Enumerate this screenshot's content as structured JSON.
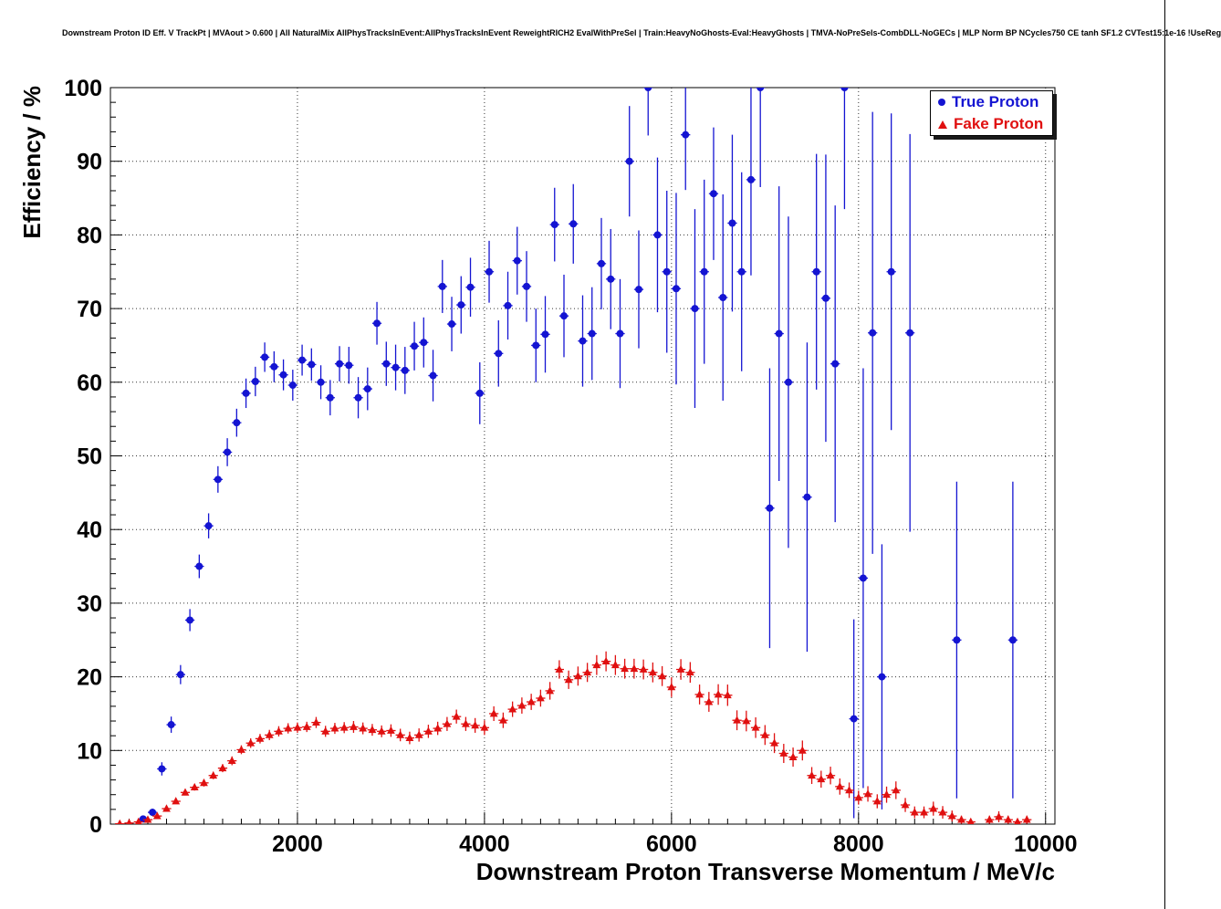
{
  "chart_data": {
    "type": "scatter",
    "title": "Downstream Proton ID Eff. V TrackPt | MVAout > 0.600 | All NaturalMix AllPhysTracksInEvent:AllPhysTracksInEvent ReweightRICH2 EvalWithPreSel | Train:HeavyNoGhosts-Eval:HeavyGhosts | TMVA-NoPreSels-CombDLL-NoGECs | MLP Norm BP NCycles750 CE tanh SF1.2 CVTest15:1e-16 !UseReg",
    "xlabel": "Downstream Proton Transverse Momentum / MeV/c",
    "ylabel": "Efficiency / %",
    "xlim": [
      0,
      10100
    ],
    "ylim": [
      0,
      100
    ],
    "xticks": [
      2000,
      4000,
      6000,
      8000,
      10000
    ],
    "yticks": [
      0,
      10,
      20,
      30,
      40,
      50,
      60,
      70,
      80,
      90,
      100
    ],
    "xmajor": 2000,
    "xminor": 200,
    "ymajor": 10,
    "yminor": 2,
    "grid": true,
    "grid_style": "dotted",
    "legend_position": "top-right",
    "bin_halfwidth": 50,
    "series": [
      {
        "name": "True Proton",
        "color": "#1414d2",
        "marker": "circle",
        "points": [
          [
            350,
            0.7,
            0.4
          ],
          [
            450,
            1.6,
            0.5
          ],
          [
            550,
            7.5,
            0.9
          ],
          [
            650,
            13.5,
            1.1
          ],
          [
            750,
            20.3,
            1.3
          ],
          [
            850,
            27.7,
            1.5
          ],
          [
            950,
            35.0,
            1.6
          ],
          [
            1050,
            40.5,
            1.7
          ],
          [
            1150,
            46.8,
            1.8
          ],
          [
            1250,
            50.5,
            1.9
          ],
          [
            1350,
            54.5,
            1.9
          ],
          [
            1450,
            58.5,
            2.0
          ],
          [
            1550,
            60.1,
            2.0
          ],
          [
            1650,
            63.4,
            2.0
          ],
          [
            1750,
            62.1,
            2.1
          ],
          [
            1850,
            61.0,
            2.1
          ],
          [
            1950,
            59.6,
            2.1
          ],
          [
            2050,
            63.0,
            2.1
          ],
          [
            2150,
            62.4,
            2.2
          ],
          [
            2250,
            60.0,
            2.3
          ],
          [
            2350,
            57.9,
            2.4
          ],
          [
            2450,
            62.5,
            2.4
          ],
          [
            2550,
            62.3,
            2.5
          ],
          [
            2650,
            57.9,
            2.8
          ],
          [
            2750,
            59.1,
            2.9
          ],
          [
            2850,
            68.0,
            2.9
          ],
          [
            2950,
            62.5,
            3.0
          ],
          [
            3050,
            62.0,
            3.1
          ],
          [
            3150,
            61.6,
            3.2
          ],
          [
            3250,
            64.9,
            3.3
          ],
          [
            3350,
            65.4,
            3.4
          ],
          [
            3450,
            60.9,
            3.5
          ],
          [
            3550,
            73.0,
            3.6
          ],
          [
            3650,
            67.9,
            3.7
          ],
          [
            3750,
            70.5,
            3.9
          ],
          [
            3850,
            72.9,
            4.0
          ],
          [
            3950,
            58.5,
            4.2
          ],
          [
            4050,
            75.0,
            4.2
          ],
          [
            4150,
            63.9,
            4.5
          ],
          [
            4250,
            70.4,
            4.6
          ],
          [
            4350,
            76.5,
            4.6
          ],
          [
            4450,
            73.0,
            4.8
          ],
          [
            4550,
            65.0,
            5.0
          ],
          [
            4650,
            66.5,
            5.2
          ],
          [
            4750,
            81.4,
            5.0
          ],
          [
            4850,
            69.0,
            5.6
          ],
          [
            4950,
            81.5,
            5.4
          ],
          [
            5050,
            65.6,
            6.2
          ],
          [
            5150,
            66.6,
            6.3
          ],
          [
            5250,
            76.1,
            6.2
          ],
          [
            5350,
            74.0,
            6.8
          ],
          [
            5450,
            66.6,
            7.4
          ],
          [
            5550,
            90.0,
            7.5
          ],
          [
            5650,
            72.6,
            8.0
          ],
          [
            5750,
            100.0,
            6.5
          ],
          [
            5850,
            80.0,
            10.5
          ],
          [
            5950,
            75.0,
            11.0
          ],
          [
            6050,
            72.7,
            13.0
          ],
          [
            6150,
            93.6,
            7.5
          ],
          [
            6250,
            70.0,
            13.5
          ],
          [
            6350,
            75.0,
            12.5
          ],
          [
            6450,
            85.6,
            9.0
          ],
          [
            6550,
            71.5,
            14.0
          ],
          [
            6650,
            81.6,
            12.0
          ],
          [
            6750,
            75.0,
            13.5
          ],
          [
            6850,
            87.5,
            13.0
          ],
          [
            6950,
            100.0,
            13.5
          ],
          [
            7050,
            42.9,
            19.0
          ],
          [
            7150,
            66.6,
            20.0
          ],
          [
            7250,
            60.0,
            22.5
          ],
          [
            7450,
            44.4,
            21.0
          ],
          [
            7550,
            75.0,
            16.0
          ],
          [
            7650,
            71.4,
            19.5
          ],
          [
            7750,
            62.5,
            21.5
          ],
          [
            7850,
            100.0,
            16.5
          ],
          [
            7950,
            14.3,
            13.5
          ],
          [
            8050,
            33.4,
            28.5
          ],
          [
            8150,
            66.7,
            30.0
          ],
          [
            8250,
            20.0,
            18.0
          ],
          [
            8350,
            75.0,
            21.5
          ],
          [
            8550,
            66.7,
            27.0
          ],
          [
            9050,
            25.0,
            21.5
          ],
          [
            9650,
            25.0,
            21.5
          ]
        ]
      },
      {
        "name": "Fake Proton",
        "color": "#e01010",
        "marker": "triangle",
        "points": [
          [
            100,
            0.05,
            0.05
          ],
          [
            200,
            0.15,
            0.1
          ],
          [
            300,
            0.3,
            0.15
          ],
          [
            400,
            0.6,
            0.2
          ],
          [
            500,
            1.1,
            0.25
          ],
          [
            600,
            2.1,
            0.3
          ],
          [
            700,
            3.1,
            0.35
          ],
          [
            800,
            4.3,
            0.4
          ],
          [
            900,
            5.0,
            0.45
          ],
          [
            1000,
            5.6,
            0.5
          ],
          [
            1100,
            6.6,
            0.5
          ],
          [
            1200,
            7.6,
            0.55
          ],
          [
            1300,
            8.6,
            0.6
          ],
          [
            1400,
            10.1,
            0.6
          ],
          [
            1500,
            11.0,
            0.65
          ],
          [
            1600,
            11.6,
            0.65
          ],
          [
            1700,
            12.1,
            0.7
          ],
          [
            1800,
            12.6,
            0.7
          ],
          [
            1900,
            13.0,
            0.7
          ],
          [
            2000,
            13.1,
            0.7
          ],
          [
            2100,
            13.2,
            0.7
          ],
          [
            2200,
            13.8,
            0.75
          ],
          [
            2300,
            12.6,
            0.75
          ],
          [
            2400,
            13.0,
            0.75
          ],
          [
            2500,
            13.1,
            0.75
          ],
          [
            2600,
            13.2,
            0.8
          ],
          [
            2700,
            13.0,
            0.8
          ],
          [
            2800,
            12.8,
            0.8
          ],
          [
            2900,
            12.6,
            0.8
          ],
          [
            3000,
            12.7,
            0.85
          ],
          [
            3100,
            12.1,
            0.85
          ],
          [
            3200,
            11.7,
            0.85
          ],
          [
            3300,
            12.1,
            0.9
          ],
          [
            3400,
            12.6,
            0.9
          ],
          [
            3500,
            13.0,
            0.9
          ],
          [
            3600,
            13.6,
            0.95
          ],
          [
            3700,
            14.6,
            0.95
          ],
          [
            3800,
            13.6,
            0.95
          ],
          [
            3900,
            13.4,
            1.0
          ],
          [
            4000,
            13.1,
            1.0
          ],
          [
            4100,
            15.0,
            1.0
          ],
          [
            4200,
            14.1,
            1.05
          ],
          [
            4300,
            15.6,
            1.05
          ],
          [
            4400,
            16.1,
            1.1
          ],
          [
            4500,
            16.6,
            1.1
          ],
          [
            4600,
            17.1,
            1.15
          ],
          [
            4700,
            18.1,
            1.2
          ],
          [
            4800,
            21.0,
            1.25
          ],
          [
            4900,
            19.6,
            1.25
          ],
          [
            5000,
            20.1,
            1.3
          ],
          [
            5100,
            20.6,
            1.3
          ],
          [
            5200,
            21.6,
            1.35
          ],
          [
            5300,
            22.1,
            1.35
          ],
          [
            5400,
            21.6,
            1.35
          ],
          [
            5500,
            21.1,
            1.35
          ],
          [
            5600,
            21.1,
            1.35
          ],
          [
            5700,
            21.0,
            1.35
          ],
          [
            5800,
            20.6,
            1.35
          ],
          [
            5900,
            20.1,
            1.35
          ],
          [
            6000,
            18.6,
            1.35
          ],
          [
            6100,
            21.0,
            1.4
          ],
          [
            6200,
            20.6,
            1.4
          ],
          [
            6300,
            17.6,
            1.35
          ],
          [
            6400,
            16.6,
            1.35
          ],
          [
            6500,
            17.6,
            1.4
          ],
          [
            6600,
            17.5,
            1.45
          ],
          [
            6700,
            14.1,
            1.35
          ],
          [
            6800,
            14.0,
            1.4
          ],
          [
            6900,
            13.1,
            1.4
          ],
          [
            7000,
            12.1,
            1.35
          ],
          [
            7100,
            11.0,
            1.35
          ],
          [
            7200,
            9.6,
            1.3
          ],
          [
            7300,
            9.1,
            1.3
          ],
          [
            7400,
            10.0,
            1.35
          ],
          [
            7500,
            6.6,
            1.15
          ],
          [
            7600,
            6.1,
            1.15
          ],
          [
            7700,
            6.6,
            1.2
          ],
          [
            7800,
            5.1,
            1.1
          ],
          [
            7900,
            4.6,
            1.05
          ],
          [
            8000,
            3.6,
            0.95
          ],
          [
            8100,
            4.1,
            1.05
          ],
          [
            8200,
            3.1,
            0.95
          ],
          [
            8300,
            4.0,
            1.1
          ],
          [
            8400,
            4.6,
            1.2
          ],
          [
            8500,
            2.6,
            0.95
          ],
          [
            8600,
            1.6,
            0.8
          ],
          [
            8700,
            1.6,
            0.8
          ],
          [
            8800,
            2.1,
            0.95
          ],
          [
            8900,
            1.6,
            0.85
          ],
          [
            9000,
            1.1,
            0.75
          ],
          [
            9100,
            0.6,
            0.55
          ],
          [
            9200,
            0.3,
            0.3
          ],
          [
            9400,
            0.6,
            0.55
          ],
          [
            9500,
            1.0,
            0.75
          ],
          [
            9600,
            0.6,
            0.55
          ],
          [
            9700,
            0.3,
            0.3
          ],
          [
            9800,
            0.6,
            0.55
          ]
        ]
      }
    ]
  }
}
